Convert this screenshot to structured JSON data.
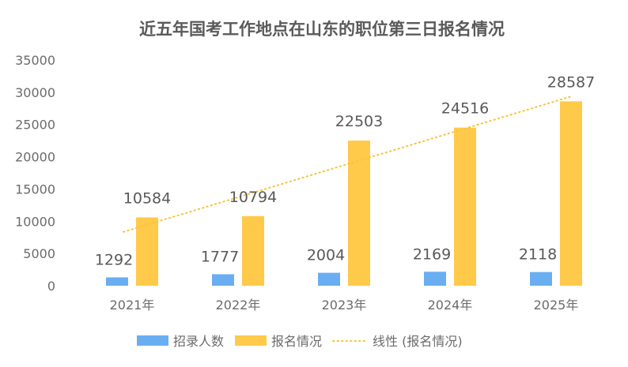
{
  "chart_data": {
    "type": "bar",
    "title": "近五年国考工作地点在山东的职位第三日报名情况",
    "categories": [
      "2021年",
      "2022年",
      "2023年",
      "2024年",
      "2025年"
    ],
    "series": [
      {
        "name": "招录人数",
        "values": [
          1292,
          1777,
          2004,
          2169,
          2118
        ],
        "color": "#6aaef2"
      },
      {
        "name": "报名情况",
        "values": [
          10584,
          10794,
          22503,
          24516,
          28587
        ],
        "color": "#ffc94a"
      }
    ],
    "trendline": {
      "name": "线性 (报名情况)",
      "of_series": "报名情况",
      "type": "linear",
      "color": "#f5c542",
      "style": "dotted"
    },
    "y_ticks": [
      "0",
      "5000",
      "10000",
      "15000",
      "20000",
      "25000",
      "30000",
      "35000"
    ],
    "ylim": [
      0,
      35000
    ],
    "xlabel": "",
    "ylabel": "",
    "grid": false,
    "legend_position": "bottom"
  }
}
